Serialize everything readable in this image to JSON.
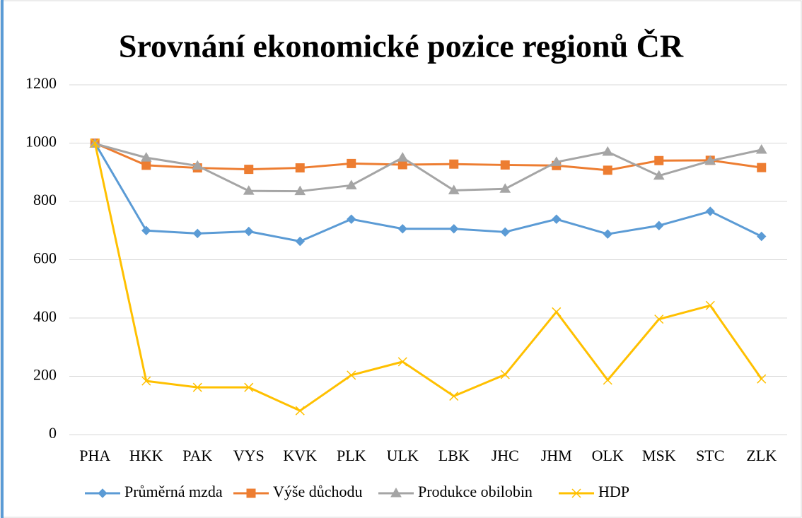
{
  "chart_data": {
    "type": "line",
    "title": "Srovnání ekonomické pozice regionů ČR",
    "categories": [
      "PHA",
      "HKK",
      "PAK",
      "VYS",
      "KVK",
      "PLK",
      "ULK",
      "LBK",
      "JHC",
      "JHM",
      "OLK",
      "MSK",
      "STC",
      "ZLK"
    ],
    "series": [
      {
        "name": "Průměrná mzda",
        "color": "#5b9bd5",
        "marker": "diamond",
        "values": [
          1000,
          700,
          690,
          697,
          663,
          739,
          706,
          706,
          695,
          739,
          688,
          717,
          766,
          680
        ]
      },
      {
        "name": "Výše důchodu",
        "color": "#ed7d31",
        "marker": "square",
        "values": [
          1000,
          924,
          915,
          910,
          915,
          930,
          926,
          928,
          925,
          923,
          907,
          940,
          941,
          916
        ]
      },
      {
        "name": "Produkce obilobin",
        "color": "#a5a5a5",
        "marker": "triangle",
        "values": [
          998,
          950,
          922,
          836,
          835,
          855,
          950,
          838,
          843,
          935,
          970,
          888,
          939,
          977
        ]
      },
      {
        "name": "HDP",
        "color": "#ffc000",
        "marker": "x",
        "values": [
          1000,
          184,
          162,
          162,
          82,
          204,
          250,
          132,
          206,
          421,
          187,
          396,
          443,
          191
        ]
      }
    ],
    "ylim": [
      0,
      1200
    ],
    "yticks": [
      0,
      200,
      400,
      600,
      800,
      1000,
      1200
    ],
    "grid": true,
    "legend": "bottom"
  }
}
